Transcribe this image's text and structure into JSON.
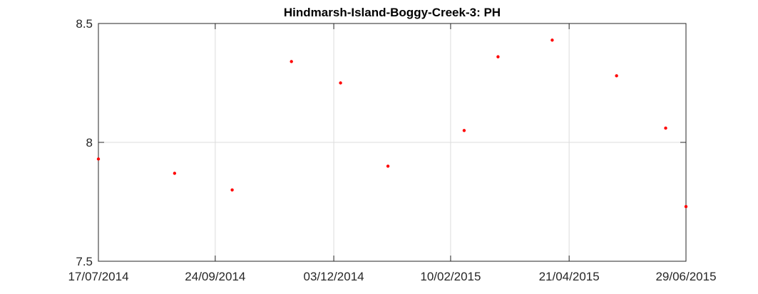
{
  "chart_data": {
    "type": "scatter",
    "title": "Hindmarsh-Island-Boggy-Creek-3: PH",
    "xlabel": "",
    "ylabel": "",
    "x_ticks": [
      "17/07/2014",
      "24/09/2014",
      "03/12/2014",
      "10/02/2015",
      "21/04/2015",
      "29/06/2015"
    ],
    "y_ticks": [
      "7.5",
      "8",
      "8.5"
    ],
    "xlim": [
      "2014-07-17",
      "2015-06-29"
    ],
    "ylim": [
      7.5,
      8.5
    ],
    "grid": true,
    "marker_color": "#ff0000",
    "series": [
      {
        "points": [
          {
            "x": "2014-07-17",
            "y": 7.93
          },
          {
            "x": "2014-08-31",
            "y": 7.87
          },
          {
            "x": "2014-10-04",
            "y": 7.8
          },
          {
            "x": "2014-11-08",
            "y": 8.34
          },
          {
            "x": "2014-12-07",
            "y": 8.25
          },
          {
            "x": "2015-01-04",
            "y": 7.9
          },
          {
            "x": "2015-02-18",
            "y": 8.05
          },
          {
            "x": "2015-03-10",
            "y": 8.36
          },
          {
            "x": "2015-04-11",
            "y": 8.43
          },
          {
            "x": "2015-05-19",
            "y": 8.28
          },
          {
            "x": "2015-06-17",
            "y": 8.06
          },
          {
            "x": "2015-06-29",
            "y": 7.73
          }
        ]
      }
    ]
  }
}
